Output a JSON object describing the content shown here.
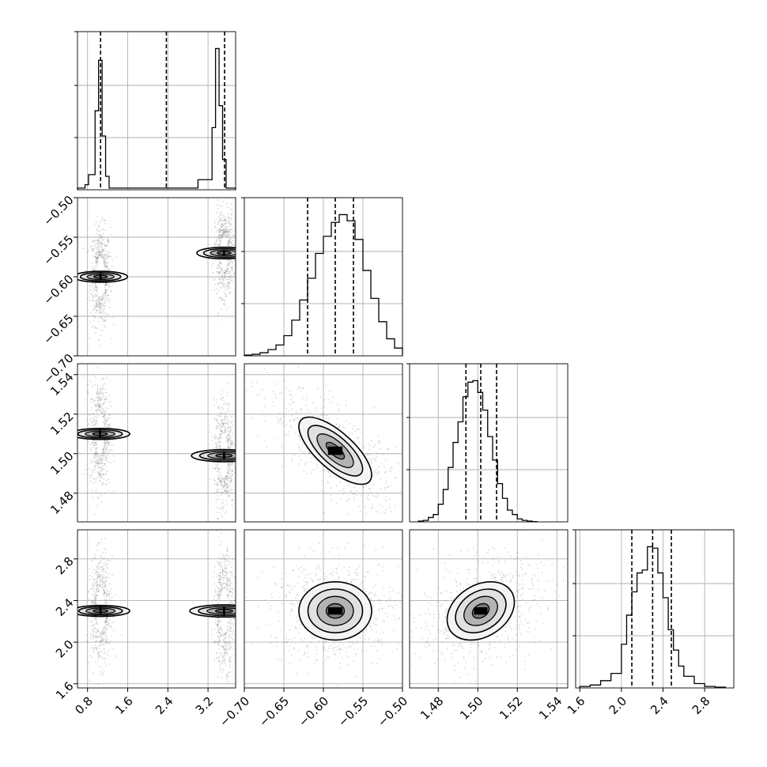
{
  "chart_data": {
    "type": "corner",
    "grid": true,
    "parameters": [
      {
        "ticks": [
          0.8,
          1.6,
          2.4,
          3.2
        ],
        "tick_labels": [
          "0.8",
          "1.6",
          "2.4",
          "3.2"
        ],
        "range": [
          0.6,
          3.75
        ]
      },
      {
        "ticks": [
          -0.7,
          -0.65,
          -0.6,
          -0.55,
          -0.5
        ],
        "tick_labels": [
          "−0.70",
          "−0.65",
          "−0.60",
          "−0.55",
          "−0.50"
        ],
        "range": [
          -0.7,
          -0.5
        ]
      },
      {
        "ticks": [
          1.48,
          1.5,
          1.52,
          1.54
        ],
        "tick_labels": [
          "1.48",
          "1.50",
          "1.52",
          "1.54"
        ],
        "range": [
          1.4655,
          1.5455
        ]
      },
      {
        "ticks": [
          1.6,
          2.0,
          2.4,
          2.8
        ],
        "tick_labels": [
          "1.6",
          "2.0",
          "2.4",
          "2.8"
        ],
        "range": [
          1.56,
          3.08
        ]
      }
    ],
    "histograms": [
      {
        "parameter": 0,
        "quantiles": [
          1.06,
          2.37,
          3.53
        ],
        "edges": [
          0.6,
          0.75,
          0.82,
          0.95,
          1.02,
          1.09,
          1.16,
          1.23,
          1.37,
          2.7,
          3.0,
          3.28,
          3.35,
          3.42,
          3.49,
          3.56,
          3.63,
          3.75
        ],
        "counts": [
          0.01,
          0.03,
          0.09,
          0.47,
          0.77,
          0.32,
          0.08,
          0.01,
          0.01,
          0.01,
          0.06,
          0.37,
          0.84,
          0.5,
          0.18,
          0.01,
          0.01
        ]
      },
      {
        "parameter": 1,
        "quantiles": [
          -0.62,
          -0.585,
          -0.562
        ],
        "edges": [
          -0.7,
          -0.69,
          -0.68,
          -0.67,
          -0.66,
          -0.65,
          -0.64,
          -0.63,
          -0.62,
          -0.61,
          -0.6,
          -0.59,
          -0.58,
          -0.57,
          -0.56,
          -0.55,
          -0.54,
          -0.53,
          -0.52,
          -0.51,
          -0.5
        ],
        "counts": [
          0.005,
          0.01,
          0.02,
          0.04,
          0.07,
          0.13,
          0.23,
          0.36,
          0.5,
          0.66,
          0.77,
          0.86,
          0.91,
          0.87,
          0.75,
          0.55,
          0.37,
          0.22,
          0.11,
          0.05
        ]
      },
      {
        "parameter": 2,
        "quantiles": [
          1.494,
          1.5015,
          1.5095
        ],
        "edges": [
          1.47,
          1.4725,
          1.475,
          1.4775,
          1.48,
          1.4825,
          1.485,
          1.4875,
          1.49,
          1.4925,
          1.495,
          1.4975,
          1.5,
          1.5025,
          1.505,
          1.5075,
          1.51,
          1.5125,
          1.515,
          1.5175,
          1.52,
          1.5225,
          1.525,
          1.5275,
          1.53
        ],
        "counts": [
          0.005,
          0.01,
          0.03,
          0.05,
          0.12,
          0.22,
          0.37,
          0.54,
          0.68,
          0.85,
          0.95,
          0.96,
          0.88,
          0.76,
          0.58,
          0.42,
          0.26,
          0.16,
          0.08,
          0.05,
          0.02,
          0.01,
          0.005,
          0.002
        ]
      },
      {
        "parameter": 3,
        "quantiles": [
          2.1,
          2.3,
          2.48
        ],
        "edges": [
          1.6,
          1.7,
          1.8,
          1.9,
          2.0,
          2.05,
          2.1,
          2.15,
          2.2,
          2.25,
          2.3,
          2.35,
          2.4,
          2.45,
          2.5,
          2.55,
          2.6,
          2.7,
          2.8,
          2.9,
          3.0
        ],
        "counts": [
          0.01,
          0.02,
          0.05,
          0.1,
          0.3,
          0.5,
          0.66,
          0.79,
          0.81,
          0.97,
          0.96,
          0.79,
          0.62,
          0.4,
          0.26,
          0.15,
          0.08,
          0.03,
          0.01,
          0.005
        ]
      }
    ],
    "scatter_panels": [
      {
        "x": 0,
        "y": 1,
        "clusters": [
          {
            "cx": 1.06,
            "cy": -0.6,
            "sx": 0.055,
            "sy": 0.017,
            "rho": 0,
            "scale": 1.0
          },
          {
            "cx": 3.52,
            "cy": -0.57,
            "sx": 0.05,
            "sy": 0.015,
            "rho": 0,
            "scale": 1.15
          }
        ]
      },
      {
        "x": 0,
        "y": 2,
        "clusters": [
          {
            "cx": 1.05,
            "cy": 1.51,
            "sx": 0.055,
            "sy": 0.0075,
            "rho": 0,
            "scale": 1.0
          },
          {
            "cx": 3.52,
            "cy": 1.499,
            "sx": 0.055,
            "sy": 0.0075,
            "rho": 0,
            "scale": 1.1
          }
        ]
      },
      {
        "x": 0,
        "y": 3,
        "clusters": [
          {
            "cx": 1.06,
            "cy": 2.3,
            "sx": 0.055,
            "sy": 0.14,
            "rho": 0,
            "scale": 1.0
          },
          {
            "cx": 3.52,
            "cy": 2.3,
            "sx": 0.055,
            "sy": 0.15,
            "rho": 0,
            "scale": 1.1
          }
        ]
      },
      {
        "x": 1,
        "y": 2,
        "clusters": [
          {
            "cx": -0.585,
            "cy": 1.5015,
            "sx": 0.023,
            "sy": 0.0085,
            "rho": -0.72,
            "scale": 1.0
          }
        ]
      },
      {
        "x": 1,
        "y": 3,
        "clusters": [
          {
            "cx": -0.585,
            "cy": 2.3,
            "sx": 0.023,
            "sy": 0.14,
            "rho": 0,
            "scale": 1.0
          }
        ]
      },
      {
        "x": 2,
        "y": 3,
        "clusters": [
          {
            "cx": 1.5015,
            "cy": 2.3,
            "sx": 0.0085,
            "sy": 0.14,
            "rho": 0.3,
            "scale": 1.0
          }
        ]
      }
    ],
    "contour_levels_sigma": [
      0.5,
      1.0,
      1.5,
      2.0
    ],
    "colors": {
      "line": "#000000",
      "grid": "#b0b0b0",
      "points": "#555555",
      "density": "#000000"
    }
  }
}
